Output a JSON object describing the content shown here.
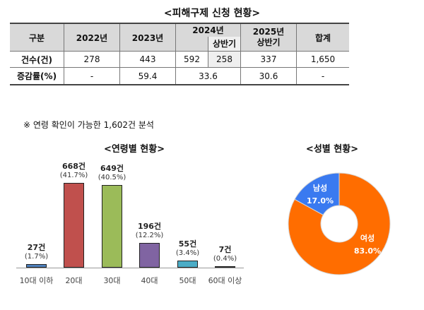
{
  "table": {
    "title": "<피해구제 신청 현황>",
    "headers": [
      "구분",
      "2022년",
      "2023년",
      "2024년",
      "상반기",
      "2025년",
      "상반기",
      "합계"
    ],
    "rows": [
      {
        "label": "건수(건)",
        "values": [
          "278",
          "443",
          "592",
          "258",
          "337",
          "1,650"
        ]
      },
      {
        "label": "증감률(%)",
        "values": [
          "-",
          "59.4",
          "33.6",
          "30.6",
          "-"
        ]
      }
    ]
  },
  "note": "※  연령 확인이 가능한 1,602건 분석",
  "chart_data": [
    {
      "type": "bar",
      "title": "<연령별 현황>",
      "categories": [
        "10대 이하",
        "20대",
        "30대",
        "40대",
        "50대",
        "60대 이상"
      ],
      "values": [
        27,
        668,
        649,
        196,
        55,
        7
      ],
      "value_labels": [
        "27건",
        "668건",
        "649건",
        "196건",
        "55건",
        "7건"
      ],
      "percent_labels": [
        "(1.7%)",
        "(41.7%)",
        "(40.5%)",
        "(12.2%)",
        "(3.4%)",
        "(0.4%)"
      ],
      "colors": [
        "#4f81bd",
        "#c0504d",
        "#9bbb59",
        "#8064a2",
        "#4bacc6",
        "#7f3f3f"
      ],
      "grid": false
    },
    {
      "type": "pie",
      "title": "<성별 현황>",
      "slices": [
        {
          "name": "남성",
          "value": 17.0,
          "label": "17.0%",
          "color": "#3a7af0"
        },
        {
          "name": "여성",
          "value": 83.0,
          "label": "83.0%",
          "color": "#ff6d00"
        }
      ],
      "donut": true
    }
  ]
}
